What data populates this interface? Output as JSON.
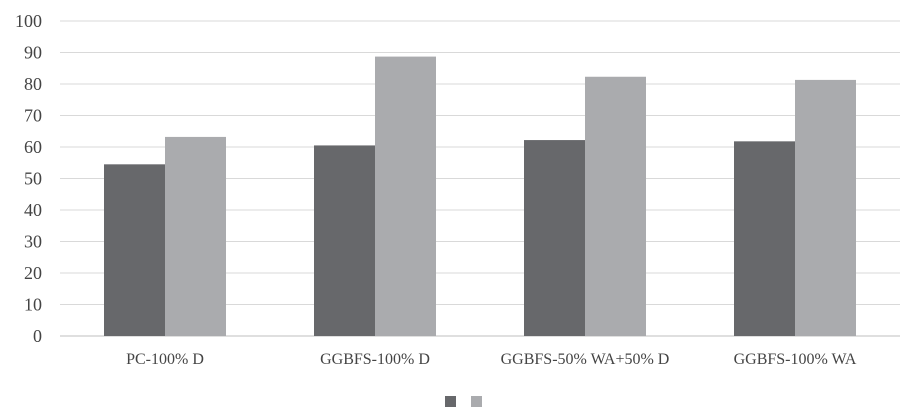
{
  "chart_data": {
    "type": "bar",
    "categories": [
      "PC-100% D",
      "GGBFS-100% D",
      "GGBFS-50% WA+50% D",
      "GGBFS-100% WA"
    ],
    "series": [
      {
        "values": [
          54.5,
          60.5,
          62.2,
          61.8
        ]
      },
      {
        "values": [
          63.2,
          88.7,
          82.3,
          81.3
        ]
      }
    ],
    "ylim": [
      0,
      100
    ],
    "yticks": [
      0,
      10,
      20,
      30,
      40,
      50,
      60,
      70,
      80,
      90,
      100
    ],
    "grid": true,
    "legend_position": "bottom",
    "title": "",
    "xlabel": "",
    "ylabel": ""
  },
  "colors": {
    "series": [
      "#67686b",
      "#aaabae"
    ],
    "grid": "#d9d9d9",
    "axis": "#bfbfbf"
  }
}
